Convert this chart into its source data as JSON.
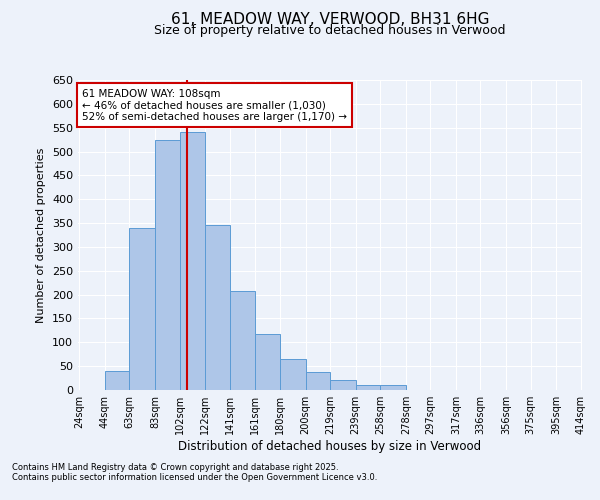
{
  "title": "61, MEADOW WAY, VERWOOD, BH31 6HG",
  "subtitle": "Size of property relative to detached houses in Verwood",
  "xlabel": "Distribution of detached houses by size in Verwood",
  "ylabel": "Number of detached properties",
  "footnote1": "Contains HM Land Registry data © Crown copyright and database right 2025.",
  "footnote2": "Contains public sector information licensed under the Open Government Licence v3.0.",
  "bar_edges": [
    24,
    44,
    63,
    83,
    102,
    122,
    141,
    161,
    180,
    200,
    219,
    239,
    258,
    278,
    297,
    317,
    336,
    356,
    375,
    395,
    414
  ],
  "bar_values": [
    0,
    40,
    340,
    525,
    540,
    345,
    207,
    118,
    65,
    38,
    20,
    10,
    11,
    0,
    1,
    0,
    0,
    1,
    0,
    1
  ],
  "tick_labels": [
    "24sqm",
    "44sqm",
    "63sqm",
    "83sqm",
    "102sqm",
    "122sqm",
    "141sqm",
    "161sqm",
    "180sqm",
    "200sqm",
    "219sqm",
    "239sqm",
    "258sqm",
    "278sqm",
    "297sqm",
    "317sqm",
    "336sqm",
    "356sqm",
    "375sqm",
    "395sqm",
    "414sqm"
  ],
  "ylim": [
    0,
    650
  ],
  "yticks": [
    0,
    50,
    100,
    150,
    200,
    250,
    300,
    350,
    400,
    450,
    500,
    550,
    600,
    650
  ],
  "bar_color": "#aec6e8",
  "bar_edge_color": "#5b9bd5",
  "vline_x": 108,
  "vline_color": "#cc0000",
  "annotation_title": "61 MEADOW WAY: 108sqm",
  "annotation_line1": "← 46% of detached houses are smaller (1,030)",
  "annotation_line2": "52% of semi-detached houses are larger (1,170) →",
  "annotation_box_color": "#cc0000",
  "background_color": "#edf2fa",
  "grid_color": "#ffffff",
  "title_fontsize": 11,
  "subtitle_fontsize": 9
}
